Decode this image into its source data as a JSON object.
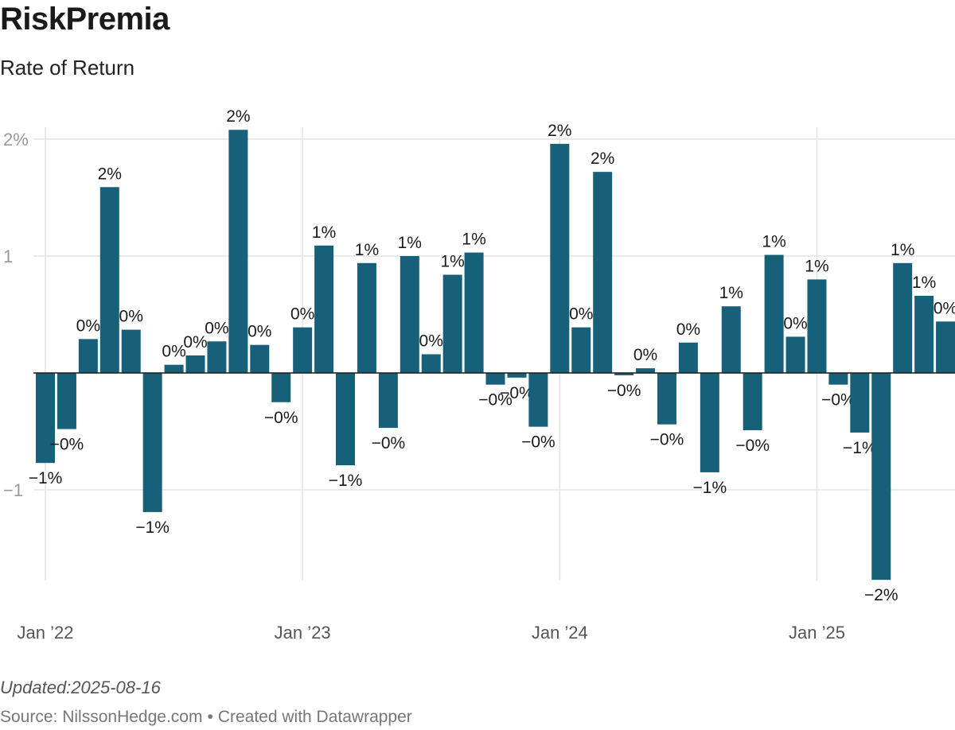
{
  "header": {
    "title": "RiskPremia",
    "subtitle": "Rate of Return"
  },
  "footer": {
    "updated": "Updated:2025-08-16",
    "source_prefix": "Source: ",
    "source": "NilssonHedge.com",
    "separator": "•",
    "credit": "Created with Datawrapper"
  },
  "chart_data": {
    "type": "bar",
    "title": "RiskPremia",
    "subtitle": "Rate of Return",
    "x_unit": "month",
    "start_month": "2022-01",
    "categories": [
      "2022-01",
      "2022-02",
      "2022-03",
      "2022-04",
      "2022-05",
      "2022-06",
      "2022-07",
      "2022-08",
      "2022-09",
      "2022-10",
      "2022-11",
      "2022-12",
      "2023-01",
      "2023-02",
      "2023-03",
      "2023-04",
      "2023-05",
      "2023-06",
      "2023-07",
      "2023-08",
      "2023-09",
      "2023-10",
      "2023-11",
      "2023-12",
      "2024-01",
      "2024-02",
      "2024-03",
      "2024-04",
      "2024-05",
      "2024-06",
      "2024-07",
      "2024-08",
      "2024-09",
      "2024-10",
      "2024-11",
      "2024-12",
      "2025-01",
      "2025-02",
      "2025-03",
      "2025-04",
      "2025-05",
      "2025-06",
      "2025-07"
    ],
    "values": [
      -0.77,
      -0.48,
      0.29,
      1.59,
      0.37,
      -1.19,
      0.07,
      0.15,
      0.27,
      2.08,
      0.24,
      -0.25,
      0.39,
      1.09,
      -0.79,
      0.94,
      -0.47,
      1.0,
      0.16,
      0.84,
      1.03,
      -0.1,
      -0.04,
      -0.46,
      1.96,
      0.39,
      1.72,
      -0.02,
      0.04,
      -0.44,
      0.26,
      -0.85,
      0.57,
      -0.49,
      1.01,
      0.31,
      0.8,
      -0.1,
      -0.51,
      -1.77,
      0.94,
      0.66,
      0.44
    ],
    "data_labels": [
      "−1%",
      "−0%",
      "0%",
      "2%",
      "0%",
      "−1%",
      "0%",
      "0%",
      "0%",
      "2%",
      "0%",
      "−0%",
      "0%",
      "1%",
      "−1%",
      "1%",
      "−0%",
      "1%",
      "0%",
      "1%",
      "1%",
      "−0%",
      "−0%",
      "−0%",
      "2%",
      "0%",
      "2%",
      "−0%",
      "0%",
      "−0%",
      "0%",
      "−1%",
      "1%",
      "−0%",
      "1%",
      "0%",
      "1%",
      "−0%",
      "−1%",
      "−2%",
      "1%",
      "1%",
      "0%"
    ],
    "y_ticks": [
      -1,
      1,
      2
    ],
    "y_tick_labels": [
      "−1",
      "1",
      "2%"
    ],
    "x_ticks": [
      "2022-01",
      "2023-01",
      "2024-01",
      "2025-01"
    ],
    "x_tick_labels": [
      "Jan ’22",
      "Jan ’23",
      "Jan ’24",
      "Jan ’25"
    ],
    "ylim": [
      -1.8,
      2.1
    ],
    "grid": true,
    "bar_color": "#16607a",
    "grid_color": "#e3e3e3",
    "baseline_color": "#1a1a1a"
  }
}
